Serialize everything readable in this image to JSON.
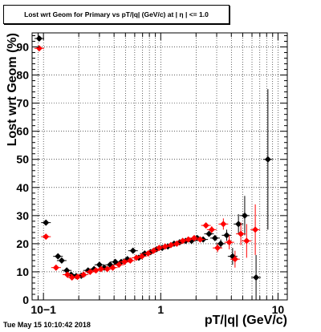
{
  "title": "Lost wrt Geom for Primary vs pT/|q| (GeV/c) at | η | <= 1.0",
  "timestamp": "Tue May 15 10:10:42 2018",
  "colors": {
    "series_black": "#000000",
    "series_red": "#ff0000",
    "grid": "#000000"
  },
  "chart_data": {
    "type": "scatter",
    "title": "Lost wrt Geom for Primary vs pT/|q| (GeV/c) at | η | <= 1.0",
    "xlabel": "pT/|q| (GeV/c)",
    "ylabel": "Lost wrt Geom (%)",
    "xscale": "log",
    "xlim": [
      0.08,
      12
    ],
    "ylim": [
      0,
      95
    ],
    "grid": true,
    "x_ticks": [
      {
        "value": 0.1,
        "label": "10−1"
      },
      {
        "value": 1,
        "label": "1"
      },
      {
        "value": 10,
        "label": "10"
      }
    ],
    "y_ticks": [
      0,
      10,
      20,
      30,
      40,
      50,
      60,
      70,
      80,
      90
    ],
    "series": [
      {
        "color": "#000000",
        "points": [
          {
            "x": 0.092,
            "y": 93.0,
            "err": 0
          },
          {
            "x": 0.105,
            "y": 27.5,
            "err": 0
          },
          {
            "x": 0.133,
            "y": 15.5,
            "err": 0
          },
          {
            "x": 0.143,
            "y": 14.0,
            "err": 0
          },
          {
            "x": 0.158,
            "y": 10.5,
            "err": 0
          },
          {
            "x": 0.172,
            "y": 9.0,
            "err": 0
          },
          {
            "x": 0.19,
            "y": 8.5,
            "err": 0
          },
          {
            "x": 0.21,
            "y": 8.6,
            "err": 0
          },
          {
            "x": 0.24,
            "y": 10.5,
            "err": 0
          },
          {
            "x": 0.27,
            "y": 11.0,
            "err": 0
          },
          {
            "x": 0.3,
            "y": 12.5,
            "err": 0
          },
          {
            "x": 0.33,
            "y": 11.5,
            "err": 0
          },
          {
            "x": 0.37,
            "y": 12.5,
            "err": 0
          },
          {
            "x": 0.41,
            "y": 13.5,
            "err": 0
          },
          {
            "x": 0.46,
            "y": 13.5,
            "err": 0
          },
          {
            "x": 0.52,
            "y": 14.5,
            "err": 0
          },
          {
            "x": 0.58,
            "y": 17.5,
            "err": 0
          },
          {
            "x": 0.65,
            "y": 15.0,
            "err": 0
          },
          {
            "x": 0.73,
            "y": 16.5,
            "err": 0
          },
          {
            "x": 0.82,
            "y": 17.0,
            "err": 0
          },
          {
            "x": 0.92,
            "y": 18.0,
            "err": 0
          },
          {
            "x": 1.03,
            "y": 18.5,
            "err": 0
          },
          {
            "x": 1.15,
            "y": 19.0,
            "err": 0
          },
          {
            "x": 1.3,
            "y": 20.0,
            "err": 0
          },
          {
            "x": 1.45,
            "y": 20.5,
            "err": 0
          },
          {
            "x": 1.63,
            "y": 21.0,
            "err": 0
          },
          {
            "x": 1.83,
            "y": 21.0,
            "err": 0
          },
          {
            "x": 2.05,
            "y": 22.0,
            "err": 0
          },
          {
            "x": 2.3,
            "y": 21.5,
            "err": 0
          },
          {
            "x": 2.58,
            "y": 23.5,
            "err": 0.8
          },
          {
            "x": 2.9,
            "y": 22.0,
            "err": 1
          },
          {
            "x": 3.25,
            "y": 20.0,
            "err": 1.5
          },
          {
            "x": 3.65,
            "y": 23.0,
            "err": 2
          },
          {
            "x": 4.1,
            "y": 15.5,
            "err": 3
          },
          {
            "x": 4.6,
            "y": 27.0,
            "err": 3.5
          },
          {
            "x": 5.2,
            "y": 30.0,
            "err": 7
          },
          {
            "x": 6.5,
            "y": 8.0,
            "err": 8
          },
          {
            "x": 8.2,
            "y": 50.0,
            "err": 25
          }
        ]
      },
      {
        "color": "#ff0000",
        "points": [
          {
            "x": 0.092,
            "y": 89.5,
            "err": 0
          },
          {
            "x": 0.105,
            "y": 22.5,
            "err": 0
          },
          {
            "x": 0.128,
            "y": 11.5,
            "err": 0
          },
          {
            "x": 0.16,
            "y": 9.0,
            "err": 0
          },
          {
            "x": 0.175,
            "y": 8.0,
            "err": 0
          },
          {
            "x": 0.195,
            "y": 8.2,
            "err": 0
          },
          {
            "x": 0.22,
            "y": 9.0,
            "err": 0
          },
          {
            "x": 0.25,
            "y": 10.0,
            "err": 0
          },
          {
            "x": 0.28,
            "y": 10.5,
            "err": 0
          },
          {
            "x": 0.31,
            "y": 11.0,
            "err": 0
          },
          {
            "x": 0.35,
            "y": 11.0,
            "err": 0
          },
          {
            "x": 0.39,
            "y": 11.5,
            "err": 0
          },
          {
            "x": 0.44,
            "y": 12.5,
            "err": 0
          },
          {
            "x": 0.49,
            "y": 13.5,
            "err": 0
          },
          {
            "x": 0.55,
            "y": 14.0,
            "err": 0
          },
          {
            "x": 0.62,
            "y": 15.0,
            "err": 0
          },
          {
            "x": 0.69,
            "y": 15.5,
            "err": 0
          },
          {
            "x": 0.78,
            "y": 16.5,
            "err": 0
          },
          {
            "x": 0.87,
            "y": 17.5,
            "err": 0
          },
          {
            "x": 0.97,
            "y": 18.5,
            "err": 0
          },
          {
            "x": 1.09,
            "y": 19.0,
            "err": 0
          },
          {
            "x": 1.22,
            "y": 19.5,
            "err": 0
          },
          {
            "x": 1.37,
            "y": 20.0,
            "err": 0
          },
          {
            "x": 1.54,
            "y": 21.0,
            "err": 0
          },
          {
            "x": 1.72,
            "y": 21.5,
            "err": 0
          },
          {
            "x": 1.93,
            "y": 22.0,
            "err": 0.7
          },
          {
            "x": 2.17,
            "y": 21.5,
            "err": 0.8
          },
          {
            "x": 2.43,
            "y": 26.5,
            "err": 1
          },
          {
            "x": 2.72,
            "y": 25.0,
            "err": 1.2
          },
          {
            "x": 3.05,
            "y": 18.5,
            "err": 1.5
          },
          {
            "x": 3.42,
            "y": 27.0,
            "err": 2
          },
          {
            "x": 3.84,
            "y": 20.5,
            "err": 2.5
          },
          {
            "x": 4.3,
            "y": 14.5,
            "err": 3
          },
          {
            "x": 4.82,
            "y": 23.5,
            "err": 4
          },
          {
            "x": 5.4,
            "y": 21.0,
            "err": 6
          },
          {
            "x": 6.4,
            "y": 25.0,
            "err": 9
          }
        ]
      }
    ]
  }
}
